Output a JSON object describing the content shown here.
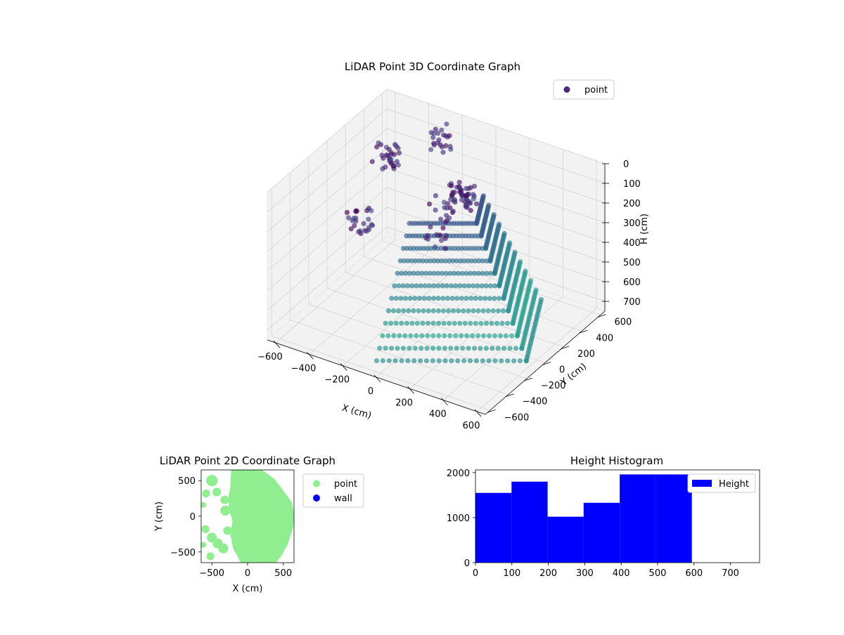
{
  "colors": {
    "point3d": "#472c7a",
    "point2d": "#90ee90",
    "wall": "#0000ff",
    "bar": "#0000ff",
    "pane": "#f2f2f2",
    "grid": "#d0d0d0"
  },
  "chart_data": [
    {
      "type": "scatter",
      "projection": "3d",
      "title": "LiDAR Point 3D Coordinate Graph",
      "xlabel": "X (cm)",
      "ylabel": "Y (cm)",
      "zlabel": "H (cm)",
      "xlim": [
        -650,
        650
      ],
      "ylim": [
        -650,
        650
      ],
      "zlim": [
        0,
        750
      ],
      "z_inverted": true,
      "xticks": [
        -600,
        -400,
        -200,
        0,
        200,
        400,
        600
      ],
      "yticks": [
        -600,
        -400,
        -200,
        0,
        200,
        400,
        600
      ],
      "zticks": [
        0,
        100,
        200,
        300,
        400,
        500,
        600,
        700
      ],
      "legend": {
        "position": "top-right",
        "entries": [
          "point"
        ]
      },
      "series": [
        {
          "name": "point",
          "colormap": "viridis",
          "fans": [
            {
              "x0": -80,
              "y0": -500,
              "x1": 560,
              "y1": -40
            },
            {
              "x0": 560,
              "y0": -40,
              "x1": 320,
              "y1": 560
            }
          ],
          "clusters": [
            {
              "x": -560,
              "y": 480,
              "h": 250,
              "n": 30
            },
            {
              "x": -300,
              "y": 580,
              "h": 120,
              "n": 22
            },
            {
              "x": -520,
              "y": 120,
              "h": 420,
              "n": 25
            },
            {
              "x": -120,
              "y": 300,
              "h": 300,
              "n": 18
            },
            {
              "x": 0,
              "y": 300,
              "h": 200,
              "n": 45
            },
            {
              "x": -80,
              "y": 150,
              "h": 380,
              "n": 12
            }
          ]
        }
      ]
    },
    {
      "type": "scatter",
      "title": "LiDAR Point 2D Coordinate Graph",
      "xlabel": "X (cm)",
      "ylabel": "Y (cm)",
      "xlim": [
        -650,
        650
      ],
      "ylim": [
        -650,
        650
      ],
      "xticks": [
        -500,
        0,
        500
      ],
      "yticks": [
        -500,
        0,
        500
      ],
      "legend": {
        "position": "outside-right",
        "entries": [
          "point",
          "wall"
        ]
      },
      "series": [
        {
          "name": "point",
          "main_region": [
            [
              -230,
              650
            ],
            [
              200,
              650
            ],
            [
              380,
              520
            ],
            [
              500,
              360
            ],
            [
              620,
              200
            ],
            [
              650,
              40
            ],
            [
              640,
              -150
            ],
            [
              560,
              -400
            ],
            [
              470,
              -560
            ],
            [
              400,
              -650
            ],
            [
              -100,
              -650
            ],
            [
              -140,
              -560
            ],
            [
              -200,
              -460
            ],
            [
              -240,
              -260
            ],
            [
              -210,
              -60
            ],
            [
              -260,
              90
            ],
            [
              -270,
              260
            ],
            [
              -240,
              420
            ]
          ],
          "blobs": [
            {
              "x": -500,
              "y": 500,
              "r": 80
            },
            {
              "x": -430,
              "y": 340,
              "r": 60
            },
            {
              "x": -320,
              "y": 230,
              "r": 60
            },
            {
              "x": -580,
              "y": 320,
              "r": 55
            },
            {
              "x": -620,
              "y": 160,
              "r": 40
            },
            {
              "x": -310,
              "y": 80,
              "r": 70
            },
            {
              "x": -590,
              "y": -180,
              "r": 55
            },
            {
              "x": -500,
              "y": -300,
              "r": 70
            },
            {
              "x": -420,
              "y": -380,
              "r": 70
            },
            {
              "x": -340,
              "y": -450,
              "r": 70
            },
            {
              "x": -520,
              "y": -560,
              "r": 55
            },
            {
              "x": -280,
              "y": -200,
              "r": 60
            },
            {
              "x": -620,
              "y": -400,
              "r": 40
            }
          ]
        },
        {
          "name": "wall",
          "points": []
        }
      ]
    },
    {
      "type": "bar",
      "title": "Height Histogram",
      "xlim": [
        0,
        780
      ],
      "ylim": [
        0,
        2060
      ],
      "xticks": [
        0,
        100,
        200,
        300,
        400,
        500,
        600,
        700
      ],
      "yticks": [
        0,
        1000,
        2000
      ],
      "legend": {
        "position": "top-right",
        "entries": [
          "Height"
        ]
      },
      "bins": [
        {
          "x0": 0,
          "x1": 99,
          "value": 1550
        },
        {
          "x0": 99,
          "x1": 198,
          "value": 1800
        },
        {
          "x0": 198,
          "x1": 297,
          "value": 1020
        },
        {
          "x0": 297,
          "x1": 396,
          "value": 1330
        },
        {
          "x0": 396,
          "x1": 495,
          "value": 1960
        },
        {
          "x0": 495,
          "x1": 594,
          "value": 1960
        }
      ],
      "series": [
        {
          "name": "Height"
        }
      ]
    }
  ]
}
